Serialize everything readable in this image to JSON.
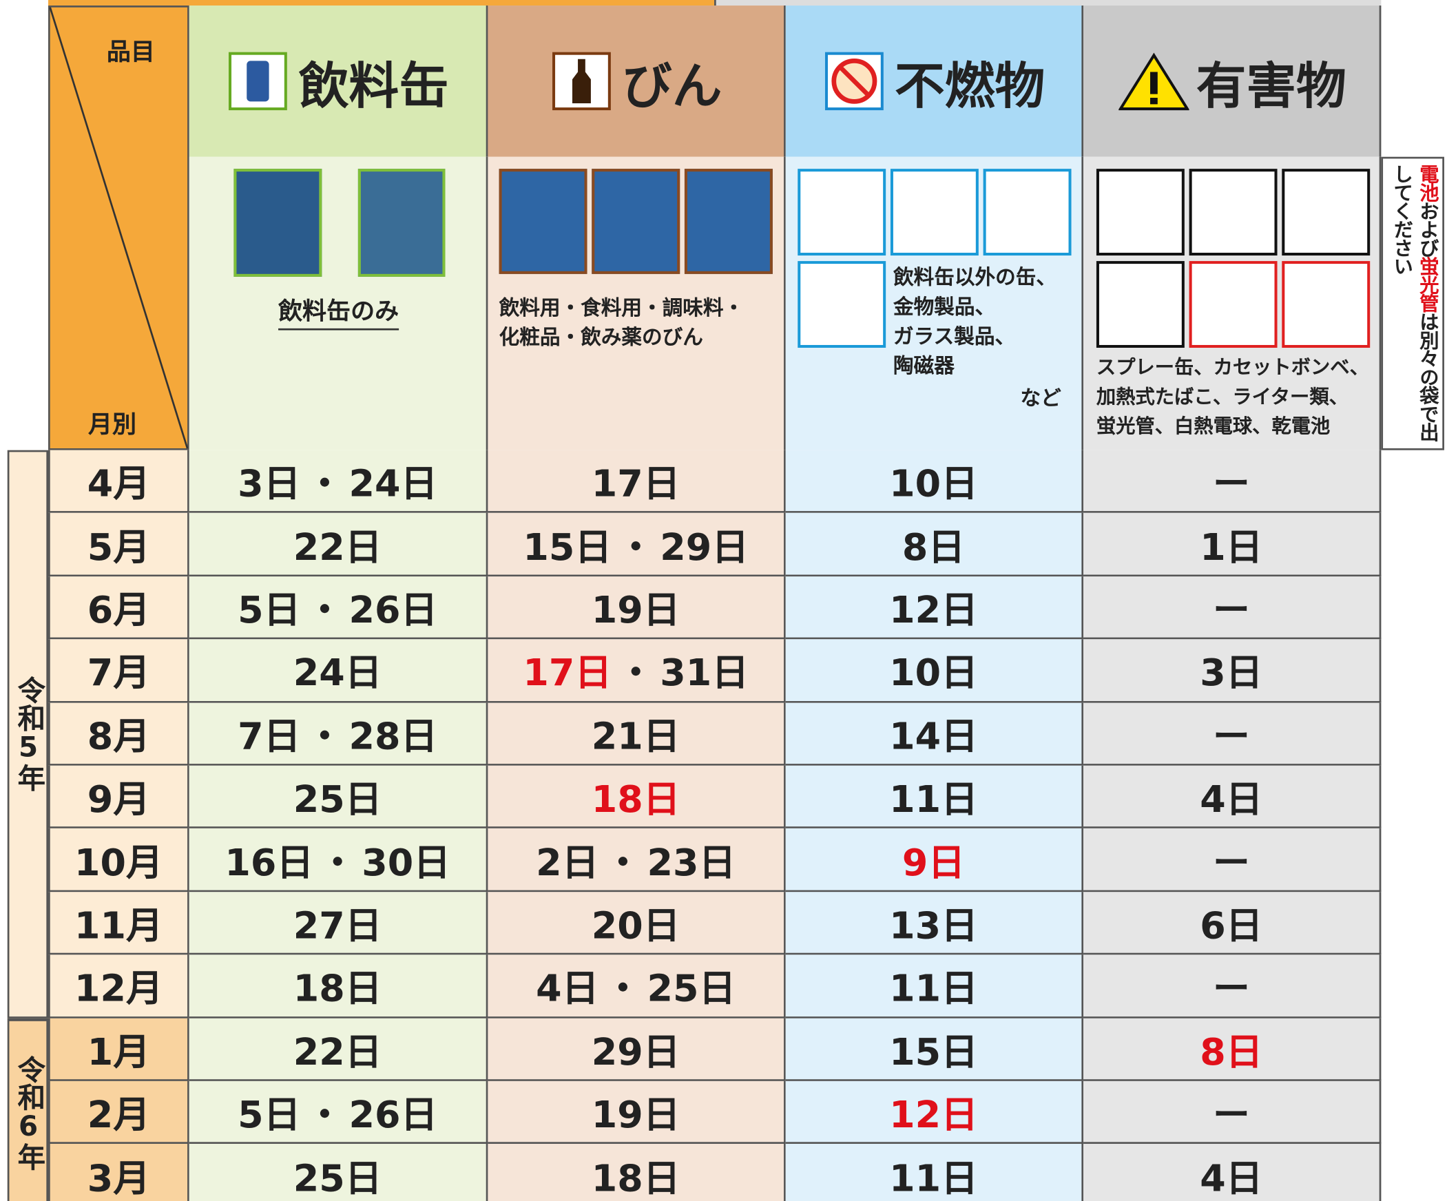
{
  "header": {
    "corner_top": "品目",
    "corner_bottom": "月別"
  },
  "columns": [
    {
      "title": "飲料缶",
      "description": [
        "飲料缶のみ"
      ]
    },
    {
      "title": "びん",
      "description": [
        "飲料用・食料用・調味料・",
        "化粧品・飲み薬のびん"
      ]
    },
    {
      "title": "不燃物",
      "description": [
        "飲料缶以外の缶、",
        "金物製品、",
        "ガラス製品、",
        "陶磁器"
      ],
      "note": "など"
    },
    {
      "title": "有害物",
      "description": [
        "スプレー缶、カセットボンベ、",
        "加熱式たばこ、ライター類、",
        "蛍光管、白熱電球、乾電池"
      ]
    }
  ],
  "side_note": [
    {
      "text": "電池",
      "highlight": true
    },
    {
      "text": "および"
    },
    {
      "text": "蛍光管",
      "highlight": true
    },
    {
      "text": "は別々の袋で出してください"
    }
  ],
  "separator": "・",
  "years": [
    {
      "label": "令和5年",
      "rows": [
        {
          "month": "4月",
          "cells": [
            [
              {
                "text": "3日"
              },
              {
                "text": "24日"
              }
            ],
            [
              {
                "text": "17日"
              }
            ],
            [
              {
                "text": "10日"
              }
            ],
            [
              {
                "text": "ー"
              }
            ]
          ]
        },
        {
          "month": "5月",
          "cells": [
            [
              {
                "text": "22日"
              }
            ],
            [
              {
                "text": "15日"
              },
              {
                "text": "29日"
              }
            ],
            [
              {
                "text": "8日"
              }
            ],
            [
              {
                "text": "1日"
              }
            ]
          ]
        },
        {
          "month": "6月",
          "cells": [
            [
              {
                "text": "5日"
              },
              {
                "text": "26日"
              }
            ],
            [
              {
                "text": "19日"
              }
            ],
            [
              {
                "text": "12日"
              }
            ],
            [
              {
                "text": "ー"
              }
            ]
          ]
        },
        {
          "month": "7月",
          "cells": [
            [
              {
                "text": "24日"
              }
            ],
            [
              {
                "text": "17日",
                "highlight": true
              },
              {
                "text": "31日"
              }
            ],
            [
              {
                "text": "10日"
              }
            ],
            [
              {
                "text": "3日"
              }
            ]
          ]
        },
        {
          "month": "8月",
          "cells": [
            [
              {
                "text": "7日"
              },
              {
                "text": "28日"
              }
            ],
            [
              {
                "text": "21日"
              }
            ],
            [
              {
                "text": "14日"
              }
            ],
            [
              {
                "text": "ー"
              }
            ]
          ]
        },
        {
          "month": "9月",
          "cells": [
            [
              {
                "text": "25日"
              }
            ],
            [
              {
                "text": "18日",
                "highlight": true
              }
            ],
            [
              {
                "text": "11日"
              }
            ],
            [
              {
                "text": "4日"
              }
            ]
          ]
        },
        {
          "month": "10月",
          "cells": [
            [
              {
                "text": "16日"
              },
              {
                "text": "30日"
              }
            ],
            [
              {
                "text": "2日"
              },
              {
                "text": "23日"
              }
            ],
            [
              {
                "text": "9日",
                "highlight": true
              }
            ],
            [
              {
                "text": "ー"
              }
            ]
          ]
        },
        {
          "month": "11月",
          "cells": [
            [
              {
                "text": "27日"
              }
            ],
            [
              {
                "text": "20日"
              }
            ],
            [
              {
                "text": "13日"
              }
            ],
            [
              {
                "text": "6日"
              }
            ]
          ]
        },
        {
          "month": "12月",
          "cells": [
            [
              {
                "text": "18日"
              }
            ],
            [
              {
                "text": "4日"
              },
              {
                "text": "25日"
              }
            ],
            [
              {
                "text": "11日"
              }
            ],
            [
              {
                "text": "ー"
              }
            ]
          ]
        }
      ]
    },
    {
      "label": "令和6年",
      "rows": [
        {
          "month": "1月",
          "cells": [
            [
              {
                "text": "22日"
              }
            ],
            [
              {
                "text": "29日"
              }
            ],
            [
              {
                "text": "15日"
              }
            ],
            [
              {
                "text": "8日",
                "highlight": true
              }
            ]
          ]
        },
        {
          "month": "2月",
          "cells": [
            [
              {
                "text": "5日"
              },
              {
                "text": "26日"
              }
            ],
            [
              {
                "text": "19日"
              }
            ],
            [
              {
                "text": "12日",
                "highlight": true
              }
            ],
            [
              {
                "text": "ー"
              }
            ]
          ]
        },
        {
          "month": "3月",
          "cells": [
            [
              {
                "text": "25日"
              }
            ],
            [
              {
                "text": "18日"
              }
            ],
            [
              {
                "text": "11日"
              }
            ],
            [
              {
                "text": "4日"
              }
            ]
          ]
        }
      ]
    }
  ]
}
